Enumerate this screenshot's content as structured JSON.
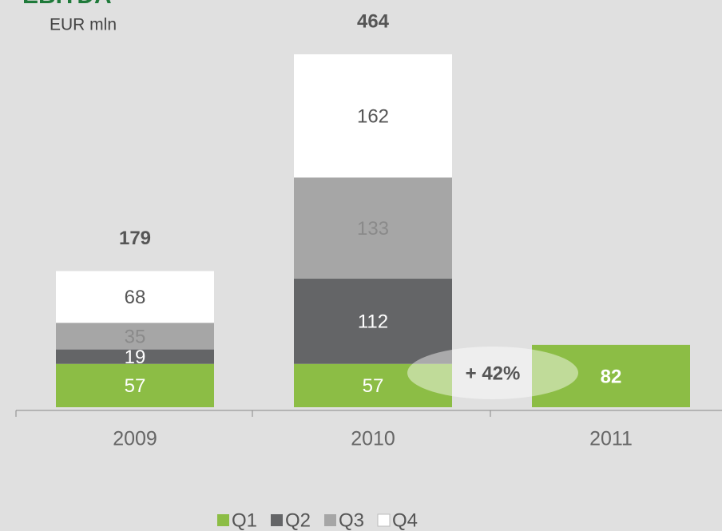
{
  "chart_data": {
    "type": "stacked-bar",
    "title": "EBITDA",
    "subtitle": "EUR mln",
    "categories": [
      "2009",
      "2010",
      "2011"
    ],
    "series": [
      {
        "name": "Q1",
        "color": "#8cbd45",
        "values": [
          57,
          57,
          82
        ]
      },
      {
        "name": "Q2",
        "color": "#646567",
        "values": [
          19,
          112,
          null
        ]
      },
      {
        "name": "Q3",
        "color": "#a6a6a6",
        "values": [
          35,
          133,
          null
        ]
      },
      {
        "name": "Q4",
        "color": "#ffffff",
        "values": [
          68,
          162,
          null
        ]
      }
    ],
    "totals": [
      179,
      464,
      null
    ],
    "annotation": "+ 42%",
    "legend": "bottom"
  }
}
